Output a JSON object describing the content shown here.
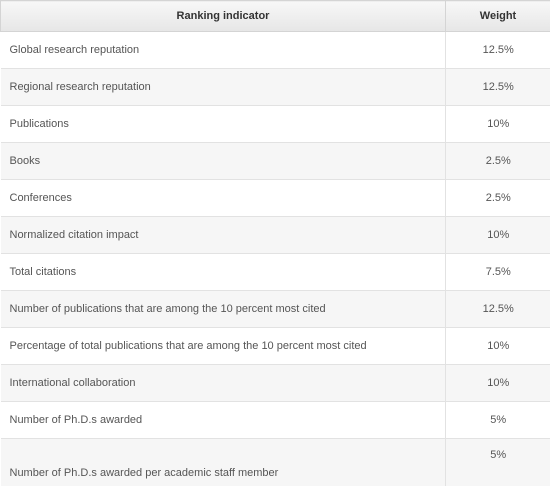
{
  "table": {
    "header": [
      "Ranking indicator",
      "Weight"
    ],
    "rows": [
      [
        "Global research reputation",
        "12.5%"
      ],
      [
        "Regional research reputation",
        "12.5%"
      ],
      [
        "Publications",
        "10%"
      ],
      [
        "Books",
        "2.5%"
      ],
      [
        "Conferences",
        "2.5%"
      ],
      [
        "Normalized citation impact",
        "10%"
      ],
      [
        "Total citations",
        "7.5%"
      ],
      [
        "Number of publications that are among the 10 percent most cited",
        "12.5%"
      ],
      [
        "Percentage of total publications that are among the 10 percent most cited",
        "10%"
      ],
      [
        "International collaboration",
        "10%"
      ],
      [
        "Number of Ph.D.s awarded",
        "5%"
      ],
      [
        "Number of Ph.D.s awarded per academic staff member",
        "5%"
      ]
    ]
  }
}
